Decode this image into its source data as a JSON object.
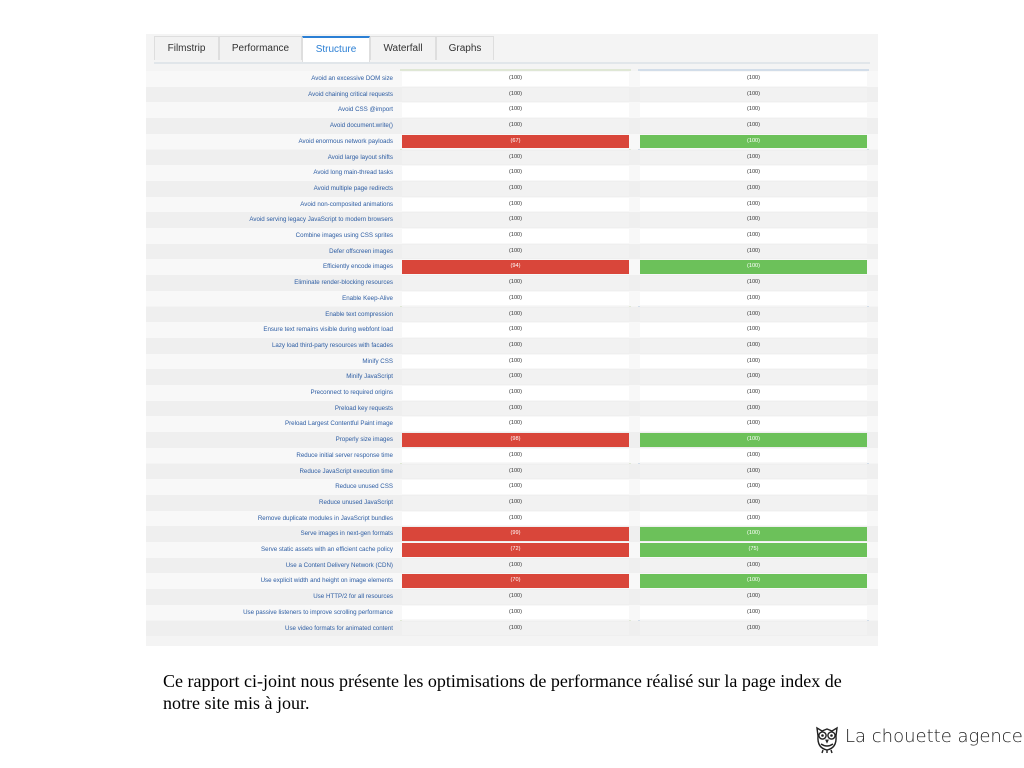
{
  "tabs": [
    {
      "label": "Filmstrip"
    },
    {
      "label": "Performance"
    },
    {
      "label": "Structure",
      "active": true
    },
    {
      "label": "Waterfall"
    },
    {
      "label": "Graphs"
    }
  ],
  "colors": {
    "bad": "#d9463a",
    "good": "#6cc15a",
    "link": "#2d5da3",
    "accent": "#2b7fd4"
  },
  "audits": [
    {
      "label": "Avoid an excessive DOM size",
      "before": "(100)",
      "after": "(100)"
    },
    {
      "label": "Avoid chaining critical requests",
      "before": "(100)",
      "after": "(100)"
    },
    {
      "label": "Avoid CSS @import",
      "before": "(100)",
      "after": "(100)"
    },
    {
      "label": "Avoid document.write()",
      "before": "(100)",
      "after": "(100)"
    },
    {
      "label": "Avoid enormous network payloads",
      "before": "(67)",
      "after": "(100)",
      "status": "changed"
    },
    {
      "label": "Avoid large layout shifts",
      "before": "(100)",
      "after": "(100)"
    },
    {
      "label": "Avoid long main-thread tasks",
      "before": "(100)",
      "after": "(100)"
    },
    {
      "label": "Avoid multiple page redirects",
      "before": "(100)",
      "after": "(100)"
    },
    {
      "label": "Avoid non-composited animations",
      "before": "(100)",
      "after": "(100)"
    },
    {
      "label": "Avoid serving legacy JavaScript to modern browsers",
      "before": "(100)",
      "after": "(100)"
    },
    {
      "label": "Combine images using CSS sprites",
      "before": "(100)",
      "after": "(100)"
    },
    {
      "label": "Defer offscreen images",
      "before": "(100)",
      "after": "(100)"
    },
    {
      "label": "Efficiently encode images",
      "before": "(94)",
      "after": "(100)",
      "status": "changed"
    },
    {
      "label": "Eliminate render-blocking resources",
      "before": "(100)",
      "after": "(100)"
    },
    {
      "label": "Enable Keep-Alive",
      "before": "(100)",
      "after": "(100)"
    },
    {
      "label": "Enable text compression",
      "before": "(100)",
      "after": "(100)"
    },
    {
      "label": "Ensure text remains visible during webfont load",
      "before": "(100)",
      "after": "(100)"
    },
    {
      "label": "Lazy load third-party resources with facades",
      "before": "(100)",
      "after": "(100)"
    },
    {
      "label": "Minify CSS",
      "before": "(100)",
      "after": "(100)"
    },
    {
      "label": "Minify JavaScript",
      "before": "(100)",
      "after": "(100)"
    },
    {
      "label": "Preconnect to required origins",
      "before": "(100)",
      "after": "(100)"
    },
    {
      "label": "Preload key requests",
      "before": "(100)",
      "after": "(100)"
    },
    {
      "label": "Preload Largest Contentful Paint image",
      "before": "(100)",
      "after": "(100)"
    },
    {
      "label": "Properly size images",
      "before": "(98)",
      "after": "(100)",
      "status": "changed"
    },
    {
      "label": "Reduce initial server response time",
      "before": "(100)",
      "after": "(100)"
    },
    {
      "label": "Reduce JavaScript execution time",
      "before": "(100)",
      "after": "(100)"
    },
    {
      "label": "Reduce unused CSS",
      "before": "(100)",
      "after": "(100)"
    },
    {
      "label": "Reduce unused JavaScript",
      "before": "(100)",
      "after": "(100)"
    },
    {
      "label": "Remove duplicate modules in JavaScript bundles",
      "before": "(100)",
      "after": "(100)"
    },
    {
      "label": "Serve images in next-gen formats",
      "before": "(99)",
      "after": "(100)",
      "status": "changed"
    },
    {
      "label": "Serve static assets with an efficient cache policy",
      "before": "(72)",
      "after": "(75)",
      "status": "changed"
    },
    {
      "label": "Use a Content Delivery Network (CDN)",
      "before": "(100)",
      "after": "(100)"
    },
    {
      "label": "Use explicit width and height on image elements",
      "before": "(70)",
      "after": "(100)",
      "status": "changed"
    },
    {
      "label": "Use HTTP/2 for all resources",
      "before": "(100)",
      "after": "(100)"
    },
    {
      "label": "Use passive listeners to improve scrolling performance",
      "before": "(100)",
      "after": "(100)"
    },
    {
      "label": "Use video formats for animated content",
      "before": "(100)",
      "after": "(100)"
    }
  ],
  "caption": "Ce rapport ci-joint nous présente les optimisations de performance réalisé sur la page index de notre site mis à jour.",
  "brand": {
    "name": "La chouette agence",
    "logo_icon": "owl-icon"
  }
}
